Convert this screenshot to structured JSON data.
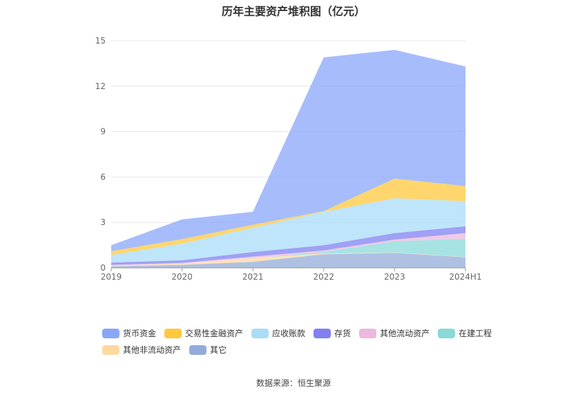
{
  "chart_data": {
    "type": "area",
    "stacked": true,
    "title": "历年主要资产堆积图（亿元）",
    "categories": [
      "2019",
      "2020",
      "2021",
      "2022",
      "2023",
      "2024H1"
    ],
    "ylim": [
      0,
      15
    ],
    "yticks": [
      0,
      3,
      6,
      9,
      12,
      15
    ],
    "xlabel": "",
    "ylabel": "",
    "grid": true,
    "legend_position": "bottom",
    "series": [
      {
        "name": "其它",
        "color": "#93acd9",
        "values": [
          0.1,
          0.2,
          0.4,
          0.9,
          1.0,
          0.7
        ]
      },
      {
        "name": "其他非流动资产",
        "color": "#ffd9a0",
        "values": [
          0.05,
          0.08,
          0.25,
          0.05,
          0.02,
          0.02
        ]
      },
      {
        "name": "在建工程",
        "color": "#8ad9d9",
        "values": [
          0.0,
          0.0,
          0.0,
          0.1,
          0.75,
          1.2
        ]
      },
      {
        "name": "其他流动资产",
        "color": "#ebb8de",
        "values": [
          0.05,
          0.05,
          0.1,
          0.1,
          0.1,
          0.38
        ]
      },
      {
        "name": "存货",
        "color": "#8080f0",
        "values": [
          0.15,
          0.17,
          0.3,
          0.35,
          0.43,
          0.45
        ]
      },
      {
        "name": "应收账款",
        "color": "#a8dcf8",
        "values": [
          0.5,
          1.1,
          1.6,
          2.2,
          2.3,
          1.65
        ]
      },
      {
        "name": "交易性金融资产",
        "color": "#ffc83d",
        "values": [
          0.25,
          0.3,
          0.2,
          0.05,
          1.3,
          1.0
        ]
      },
      {
        "name": "货币资金",
        "color": "#8aa6f8",
        "values": [
          0.4,
          1.3,
          0.85,
          10.15,
          8.5,
          7.9
        ]
      }
    ]
  },
  "legend": {
    "row1": [
      {
        "label": "货币资金",
        "color": "#8aa6f8"
      },
      {
        "label": "交易性金融资产",
        "color": "#ffc83d"
      },
      {
        "label": "应收账款",
        "color": "#a8dcf8"
      },
      {
        "label": "存货",
        "color": "#8080f0"
      },
      {
        "label": "其他流动资产",
        "color": "#ebb8de"
      },
      {
        "label": "在建工程",
        "color": "#8ad9d9"
      }
    ],
    "row2": [
      {
        "label": "其他非流动资产",
        "color": "#ffd9a0"
      },
      {
        "label": "其它",
        "color": "#93acd9"
      }
    ]
  },
  "footer": {
    "source": "数据来源：恒生聚源"
  }
}
